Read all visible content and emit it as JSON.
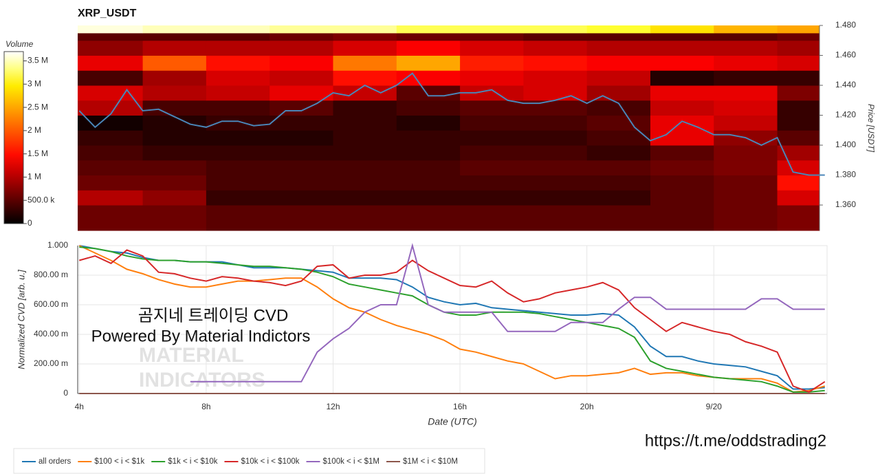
{
  "chart_data": [
    {
      "type": "heatmap",
      "title": "XRP_USDT",
      "y_label": "Price [USDT]",
      "xlim": [
        3.95,
        27.57
      ],
      "ylim": [
        1.343,
        1.48
      ],
      "yticks": [
        {
          "value": 1.36,
          "label": "1.360"
        },
        {
          "value": 1.38,
          "label": "1.380"
        },
        {
          "value": 1.4,
          "label": "1.400"
        },
        {
          "value": 1.42,
          "label": "1.420"
        },
        {
          "value": 1.44,
          "label": "1.440"
        },
        {
          "value": 1.46,
          "label": "1.460"
        },
        {
          "value": 1.48,
          "label": "1.480"
        }
      ],
      "time_bins": [
        3.95,
        6,
        8,
        10,
        12,
        14,
        16,
        18,
        20,
        22,
        24,
        26,
        27.33
      ],
      "price_bins": [
        1.343,
        1.36,
        1.37,
        1.38,
        1.39,
        1.4,
        1.41,
        1.42,
        1.43,
        1.44,
        1.45,
        1.46,
        1.47,
        1.475,
        1.48
      ],
      "volume": [
        [
          0.6,
          0.6,
          0.5,
          0.5,
          0.5,
          0.5,
          0.5,
          0.5,
          0.5,
          0.5,
          0.6,
          0.7
        ],
        [
          1.0,
          0.8,
          0.3,
          0.3,
          0.3,
          0.3,
          0.3,
          0.3,
          0.3,
          0.5,
          0.6,
          1.2
        ],
        [
          0.6,
          0.6,
          0.4,
          0.4,
          0.4,
          0.4,
          0.4,
          0.4,
          0.4,
          0.5,
          0.6,
          1.5
        ],
        [
          0.5,
          0.5,
          0.4,
          0.4,
          0.4,
          0.4,
          0.5,
          0.5,
          0.5,
          0.6,
          0.7,
          1.2
        ],
        [
          0.4,
          0.3,
          0.3,
          0.3,
          0.3,
          0.3,
          0.4,
          0.4,
          0.3,
          0.5,
          0.7,
          0.9
        ],
        [
          0.3,
          0.2,
          0.2,
          0.2,
          0.3,
          0.3,
          0.3,
          0.3,
          0.4,
          1.3,
          0.8,
          0.5
        ],
        [
          0.1,
          0.2,
          0.3,
          0.3,
          0.3,
          0.2,
          0.4,
          0.4,
          0.5,
          1.3,
          1.1,
          0.3
        ],
        [
          1.0,
          0.4,
          0.4,
          0.5,
          0.3,
          0.4,
          0.5,
          0.5,
          0.4,
          1.1,
          1.2,
          0.3
        ],
        [
          1.2,
          1.0,
          1.1,
          1.3,
          1.1,
          0.5,
          1.1,
          1.2,
          0.9,
          1.3,
          1.3,
          0.7
        ],
        [
          0.4,
          0.9,
          1.2,
          1.1,
          1.5,
          1.4,
          1.3,
          1.2,
          1.1,
          0.2,
          0.3,
          0.3
        ],
        [
          1.3,
          2.0,
          1.5,
          1.4,
          2.2,
          2.5,
          1.6,
          1.5,
          1.4,
          1.4,
          1.3,
          1.2
        ],
        [
          0.8,
          1.0,
          1.0,
          1.0,
          1.2,
          1.4,
          1.2,
          1.1,
          1.0,
          1.0,
          1.0,
          0.9
        ],
        [
          0.5,
          0.5,
          0.5,
          0.6,
          0.7,
          0.6,
          0.6,
          0.5,
          0.5,
          0.5,
          0.5,
          0.6
        ],
        [
          3.6,
          3.5,
          3.5,
          3.4,
          3.4,
          3.2,
          3.2,
          3.2,
          3.1,
          2.9,
          2.6,
          2.5
        ]
      ],
      "colorbar": {
        "title": "Volume",
        "lim": [
          0,
          3.7
        ],
        "ticks": [
          0,
          {
            "value": 0.5,
            "label": "500.0 k"
          },
          {
            "value": 1,
            "label": "1 M"
          },
          {
            "value": 1.5,
            "label": "1.5 M"
          },
          {
            "value": 2,
            "label": "2 M"
          },
          {
            "value": 2.5,
            "label": "2.5 M"
          },
          {
            "value": 3,
            "label": "3 M"
          },
          {
            "value": 3.5,
            "label": "3.5 M"
          }
        ]
      },
      "line": {
        "color": "#4a86b8",
        "x": [
          4,
          4.5,
          5,
          5.5,
          6,
          6.5,
          7,
          7.5,
          8,
          8.5,
          9,
          9.5,
          10,
          10.5,
          11,
          11.5,
          12,
          12.5,
          13,
          13.5,
          14,
          14.5,
          15,
          15.5,
          16,
          16.5,
          17,
          17.5,
          18,
          18.5,
          19,
          19.5,
          20,
          20.5,
          21,
          21.5,
          22,
          22.5,
          23,
          23.5,
          24,
          24.5,
          25,
          25.5,
          26,
          26.5,
          27,
          27.5
        ],
        "values": [
          1.423,
          1.412,
          1.421,
          1.437,
          1.423,
          1.424,
          1.419,
          1.414,
          1.412,
          1.416,
          1.416,
          1.413,
          1.414,
          1.423,
          1.423,
          1.428,
          1.435,
          1.433,
          1.44,
          1.435,
          1.44,
          1.448,
          1.433,
          1.433,
          1.435,
          1.435,
          1.437,
          1.43,
          1.428,
          1.428,
          1.43,
          1.433,
          1.428,
          1.433,
          1.428,
          1.412,
          1.403,
          1.407,
          1.416,
          1.412,
          1.407,
          1.407,
          1.405,
          1.4,
          1.405,
          1.382,
          1.38,
          1.38
        ]
      }
    },
    {
      "type": "line",
      "x_label": "Date (UTC)",
      "y_label": "Normalized CVD [arb. u.]",
      "xlim": [
        3.95,
        27.57
      ],
      "ylim": [
        0,
        1
      ],
      "xticks": [
        {
          "value": 4,
          "label": "4h"
        },
        {
          "value": 8,
          "label": "8h"
        },
        {
          "value": 12,
          "label": "12h"
        },
        {
          "value": 16,
          "label": "16h"
        },
        {
          "value": 20,
          "label": "20h"
        },
        {
          "value": 24,
          "label": "9/20"
        }
      ],
      "yticks": [
        0,
        {
          "value": 0.2,
          "label": "200.00 m"
        },
        {
          "value": 0.4,
          "label": "400.00 m"
        },
        {
          "value": 0.6,
          "label": "600.00 m"
        },
        {
          "value": 0.8,
          "label": "800.00 m"
        },
        {
          "value": 1,
          "label": "1.000"
        }
      ],
      "grid": true,
      "legend": "bottom",
      "x": [
        4,
        4.5,
        5,
        5.5,
        6,
        6.5,
        7,
        7.5,
        8,
        8.5,
        9,
        9.5,
        10,
        10.5,
        11,
        11.5,
        12,
        12.5,
        13,
        13.5,
        14,
        14.5,
        15,
        15.5,
        16,
        16.5,
        17,
        17.5,
        18,
        18.5,
        19,
        19.5,
        20,
        20.5,
        21,
        21.5,
        22,
        22.5,
        23,
        23.5,
        24,
        24.5,
        25,
        25.5,
        26,
        26.5,
        27,
        27.5
      ],
      "series": [
        {
          "name": "all orders",
          "color": "#1f77b4",
          "values": [
            1.0,
            0.98,
            0.96,
            0.95,
            0.92,
            0.9,
            0.9,
            0.89,
            0.89,
            0.89,
            0.87,
            0.85,
            0.85,
            0.85,
            0.84,
            0.83,
            0.82,
            0.78,
            0.78,
            0.78,
            0.77,
            0.72,
            0.65,
            0.62,
            0.6,
            0.61,
            0.58,
            0.57,
            0.56,
            0.55,
            0.54,
            0.53,
            0.53,
            0.54,
            0.53,
            0.45,
            0.32,
            0.25,
            0.25,
            0.22,
            0.2,
            0.19,
            0.18,
            0.15,
            0.12,
            0.03,
            0.03,
            0.04
          ]
        },
        {
          "name": "$100 < i < $1k",
          "color": "#ff7f0e",
          "values": [
            1.0,
            0.95,
            0.9,
            0.84,
            0.81,
            0.77,
            0.74,
            0.72,
            0.72,
            0.74,
            0.76,
            0.76,
            0.77,
            0.78,
            0.78,
            0.72,
            0.64,
            0.58,
            0.55,
            0.5,
            0.46,
            0.43,
            0.4,
            0.36,
            0.3,
            0.28,
            0.25,
            0.22,
            0.2,
            0.15,
            0.1,
            0.12,
            0.12,
            0.13,
            0.14,
            0.17,
            0.13,
            0.14,
            0.14,
            0.12,
            0.11,
            0.1,
            0.1,
            0.1,
            0.07,
            0.01,
            0.02,
            0.05
          ]
        },
        {
          "name": "$1k < i < $10k",
          "color": "#2ca02c",
          "values": [
            0.99,
            0.98,
            0.96,
            0.93,
            0.91,
            0.9,
            0.9,
            0.89,
            0.89,
            0.88,
            0.87,
            0.86,
            0.86,
            0.85,
            0.84,
            0.82,
            0.79,
            0.74,
            0.72,
            0.7,
            0.68,
            0.66,
            0.6,
            0.55,
            0.53,
            0.53,
            0.55,
            0.55,
            0.55,
            0.54,
            0.52,
            0.5,
            0.48,
            0.46,
            0.44,
            0.38,
            0.22,
            0.17,
            0.15,
            0.13,
            0.11,
            0.1,
            0.09,
            0.08,
            0.05,
            0.01,
            0.01,
            0.02
          ]
        },
        {
          "name": "$10k < i < $100k",
          "color": "#d62728",
          "values": [
            0.9,
            0.93,
            0.88,
            0.97,
            0.93,
            0.82,
            0.81,
            0.78,
            0.76,
            0.79,
            0.78,
            0.76,
            0.75,
            0.73,
            0.76,
            0.86,
            0.87,
            0.78,
            0.8,
            0.8,
            0.82,
            0.9,
            0.83,
            0.78,
            0.73,
            0.72,
            0.76,
            0.68,
            0.62,
            0.64,
            0.68,
            0.7,
            0.72,
            0.75,
            0.7,
            0.58,
            0.5,
            0.42,
            0.48,
            0.45,
            0.42,
            0.4,
            0.35,
            0.32,
            0.28,
            0.05,
            0.01,
            0.08
          ]
        },
        {
          "name": "$100k < i < $1M",
          "color": "#9467bd",
          "values": [
            null,
            null,
            null,
            null,
            null,
            null,
            null,
            0.08,
            0.08,
            0.08,
            0.08,
            0.08,
            0.08,
            0.08,
            0.08,
            0.28,
            0.37,
            0.44,
            0.55,
            0.6,
            0.6,
            1.0,
            0.6,
            0.55,
            0.55,
            0.55,
            0.55,
            0.42,
            0.42,
            0.42,
            0.42,
            0.48,
            0.48,
            0.48,
            0.57,
            0.65,
            0.65,
            0.57,
            0.57,
            0.57,
            0.57,
            0.57,
            0.57,
            0.64,
            0.64,
            0.57,
            0.57,
            0.57
          ]
        },
        {
          "name": "$1M < i < $10M",
          "color": "#8c564b",
          "values": [
            0,
            0,
            0,
            0,
            0,
            0,
            0,
            0,
            0,
            0,
            0,
            0,
            0,
            0,
            0,
            0,
            0,
            0,
            0,
            0,
            0,
            0,
            0,
            0,
            0,
            0,
            0,
            0,
            0,
            0,
            0,
            0,
            0,
            0,
            0,
            0,
            0,
            0,
            0,
            0,
            0,
            0,
            0,
            0,
            0,
            0,
            0,
            0
          ]
        }
      ],
      "annotations": [
        "곰지네 트레이딩 CVD",
        "Powered By Material Indictors",
        "MATERIAL",
        "INDICATORS",
        "https://t.me/oddstrading2"
      ]
    }
  ]
}
